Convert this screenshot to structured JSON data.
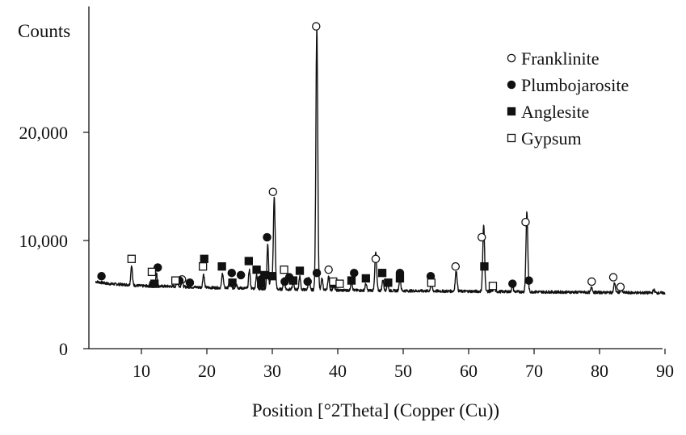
{
  "chart_data": {
    "type": "line",
    "title": "",
    "xlabel": "Position [°2Theta] (Copper (Cu))",
    "ylabel": "Counts",
    "xlim": [
      3,
      90
    ],
    "ylim": [
      0,
      30000
    ],
    "x_ticks": [
      10,
      20,
      30,
      40,
      50,
      60,
      70,
      80,
      90
    ],
    "x_tick_labels": [
      "10",
      "20",
      "30",
      "40",
      "50",
      "60",
      "70",
      "80",
      "90"
    ],
    "y_ticks": [
      0,
      10000,
      20000
    ],
    "y_tick_labels": [
      "0",
      "10,000",
      "20,000"
    ],
    "grid": false,
    "legend_position": "top-right",
    "legend": [
      {
        "label": "Franklinite",
        "marker": "open-circle"
      },
      {
        "label": "Plumbojarosite",
        "marker": "filled-circle"
      },
      {
        "label": "Anglesite",
        "marker": "filled-square"
      },
      {
        "label": "Gypsum",
        "marker": "open-square"
      }
    ],
    "baseline": [
      [
        3,
        6200
      ],
      [
        5,
        6000
      ],
      [
        8,
        5900
      ],
      [
        10,
        5800
      ],
      [
        15,
        5750
      ],
      [
        20,
        5650
      ],
      [
        25,
        5600
      ],
      [
        30,
        5500
      ],
      [
        35,
        5450
      ],
      [
        40,
        5400
      ],
      [
        50,
        5350
      ],
      [
        60,
        5300
      ],
      [
        70,
        5250
      ],
      [
        80,
        5200
      ],
      [
        90,
        5150
      ]
    ],
    "peaks": [
      {
        "x": 8.5,
        "y": 7700,
        "w": 0.12
      },
      {
        "x": 11.7,
        "y": 6300,
        "w": 0.12
      },
      {
        "x": 12.3,
        "y": 7000,
        "w": 0.12
      },
      {
        "x": 15.5,
        "y": 6100,
        "w": 0.12
      },
      {
        "x": 16.2,
        "y": 6200,
        "w": 0.12
      },
      {
        "x": 19.5,
        "y": 6900,
        "w": 0.12
      },
      {
        "x": 22.4,
        "y": 7000,
        "w": 0.12
      },
      {
        "x": 23.5,
        "y": 6400,
        "w": 0.12
      },
      {
        "x": 24.5,
        "y": 6000,
        "w": 0.12
      },
      {
        "x": 26.5,
        "y": 7300,
        "w": 0.12
      },
      {
        "x": 27.6,
        "y": 6800,
        "w": 0.12
      },
      {
        "x": 29.3,
        "y": 9600,
        "w": 0.12
      },
      {
        "x": 29.8,
        "y": 6900,
        "w": 0.12
      },
      {
        "x": 30.3,
        "y": 14000,
        "w": 0.14
      },
      {
        "x": 31.8,
        "y": 6600,
        "w": 0.12
      },
      {
        "x": 33.2,
        "y": 6100,
        "w": 0.12
      },
      {
        "x": 34.2,
        "y": 6700,
        "w": 0.12
      },
      {
        "x": 35.6,
        "y": 6500,
        "w": 0.12
      },
      {
        "x": 36.8,
        "y": 29800,
        "w": 0.14
      },
      {
        "x": 37.6,
        "y": 6500,
        "w": 0.12
      },
      {
        "x": 38.6,
        "y": 6700,
        "w": 0.12
      },
      {
        "x": 39.4,
        "y": 6000,
        "w": 0.12
      },
      {
        "x": 42.1,
        "y": 6300,
        "w": 0.12
      },
      {
        "x": 44.3,
        "y": 6000,
        "w": 0.12
      },
      {
        "x": 45.8,
        "y": 8900,
        "w": 0.14
      },
      {
        "x": 46.9,
        "y": 6400,
        "w": 0.12
      },
      {
        "x": 47.6,
        "y": 6000,
        "w": 0.12
      },
      {
        "x": 49.5,
        "y": 6600,
        "w": 0.12
      },
      {
        "x": 54.3,
        "y": 6100,
        "w": 0.12
      },
      {
        "x": 58.1,
        "y": 7200,
        "w": 0.14
      },
      {
        "x": 62.3,
        "y": 11400,
        "w": 0.14
      },
      {
        "x": 63.9,
        "y": 5700,
        "w": 0.12
      },
      {
        "x": 66.7,
        "y": 5800,
        "w": 0.12
      },
      {
        "x": 68.9,
        "y": 12600,
        "w": 0.14
      },
      {
        "x": 78.8,
        "y": 5700,
        "w": 0.12
      },
      {
        "x": 82.3,
        "y": 6100,
        "w": 0.12
      },
      {
        "x": 83.3,
        "y": 5500,
        "w": 0.12
      },
      {
        "x": 88.3,
        "y": 5450,
        "w": 0.12
      }
    ],
    "markers": [
      {
        "phase": "Franklinite",
        "x": 16.2,
        "y": 6400
      },
      {
        "phase": "Franklinite",
        "x": 30.1,
        "y": 14500
      },
      {
        "phase": "Franklinite",
        "x": 36.7,
        "y": 29800
      },
      {
        "phase": "Franklinite",
        "x": 38.6,
        "y": 7300
      },
      {
        "phase": "Franklinite",
        "x": 45.8,
        "y": 8300
      },
      {
        "phase": "Franklinite",
        "x": 58.0,
        "y": 7600
      },
      {
        "phase": "Franklinite",
        "x": 62.0,
        "y": 10300
      },
      {
        "phase": "Franklinite",
        "x": 68.7,
        "y": 11700
      },
      {
        "phase": "Franklinite",
        "x": 78.8,
        "y": 6200
      },
      {
        "phase": "Franklinite",
        "x": 82.1,
        "y": 6600
      },
      {
        "phase": "Franklinite",
        "x": 83.2,
        "y": 5700
      },
      {
        "phase": "Plumbojarosite",
        "x": 3.9,
        "y": 6700
      },
      {
        "phase": "Plumbojarosite",
        "x": 11.8,
        "y": 6000
      },
      {
        "phase": "Plumbojarosite",
        "x": 12.5,
        "y": 7500
      },
      {
        "phase": "Plumbojarosite",
        "x": 15.8,
        "y": 6300
      },
      {
        "phase": "Plumbojarosite",
        "x": 17.4,
        "y": 6100
      },
      {
        "phase": "Plumbojarosite",
        "x": 23.8,
        "y": 7000
      },
      {
        "phase": "Plumbojarosite",
        "x": 25.2,
        "y": 6800
      },
      {
        "phase": "Plumbojarosite",
        "x": 28.3,
        "y": 6400
      },
      {
        "phase": "Plumbojarosite",
        "x": 29.2,
        "y": 10300
      },
      {
        "phase": "Plumbojarosite",
        "x": 31.9,
        "y": 6200
      },
      {
        "phase": "Plumbojarosite",
        "x": 32.6,
        "y": 6600
      },
      {
        "phase": "Plumbojarosite",
        "x": 35.4,
        "y": 6200
      },
      {
        "phase": "Plumbojarosite",
        "x": 36.8,
        "y": 7000
      },
      {
        "phase": "Plumbojarosite",
        "x": 42.5,
        "y": 7000
      },
      {
        "phase": "Plumbojarosite",
        "x": 49.5,
        "y": 7000
      },
      {
        "phase": "Plumbojarosite",
        "x": 54.2,
        "y": 6700
      },
      {
        "phase": "Plumbojarosite",
        "x": 66.7,
        "y": 6000
      },
      {
        "phase": "Plumbojarosite",
        "x": 69.2,
        "y": 6300
      },
      {
        "phase": "Anglesite",
        "x": 12.0,
        "y": 6000
      },
      {
        "phase": "Anglesite",
        "x": 19.6,
        "y": 8300
      },
      {
        "phase": "Anglesite",
        "x": 22.3,
        "y": 7600
      },
      {
        "phase": "Anglesite",
        "x": 23.9,
        "y": 6100
      },
      {
        "phase": "Anglesite",
        "x": 26.4,
        "y": 8100
      },
      {
        "phase": "Anglesite",
        "x": 27.6,
        "y": 7300
      },
      {
        "phase": "Anglesite",
        "x": 28.3,
        "y": 6000
      },
      {
        "phase": "Anglesite",
        "x": 28.8,
        "y": 6800
      },
      {
        "phase": "Anglesite",
        "x": 30.0,
        "y": 6700
      },
      {
        "phase": "Anglesite",
        "x": 33.2,
        "y": 6300
      },
      {
        "phase": "Anglesite",
        "x": 34.2,
        "y": 7200
      },
      {
        "phase": "Anglesite",
        "x": 39.5,
        "y": 6000
      },
      {
        "phase": "Anglesite",
        "x": 42.1,
        "y": 6300
      },
      {
        "phase": "Anglesite",
        "x": 44.3,
        "y": 6500
      },
      {
        "phase": "Anglesite",
        "x": 46.8,
        "y": 7000
      },
      {
        "phase": "Anglesite",
        "x": 47.7,
        "y": 6100
      },
      {
        "phase": "Anglesite",
        "x": 49.5,
        "y": 6500
      },
      {
        "phase": "Anglesite",
        "x": 62.4,
        "y": 7600
      },
      {
        "phase": "Gypsum",
        "x": 8.5,
        "y": 8300
      },
      {
        "phase": "Gypsum",
        "x": 11.6,
        "y": 7100
      },
      {
        "phase": "Gypsum",
        "x": 15.2,
        "y": 6300
      },
      {
        "phase": "Gypsum",
        "x": 19.4,
        "y": 7600
      },
      {
        "phase": "Gypsum",
        "x": 31.8,
        "y": 7300
      },
      {
        "phase": "Gypsum",
        "x": 39.3,
        "y": 6200
      },
      {
        "phase": "Gypsum",
        "x": 40.3,
        "y": 6000
      },
      {
        "phase": "Gypsum",
        "x": 54.3,
        "y": 6100
      },
      {
        "phase": "Gypsum",
        "x": 63.7,
        "y": 5800
      }
    ]
  }
}
